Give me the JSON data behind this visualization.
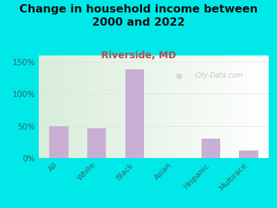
{
  "title": "Change in household income between\n2000 and 2022",
  "subtitle": "Riverside, MD",
  "categories": [
    "All",
    "White",
    "Black",
    "Asian",
    "Hispanic",
    "Multirace"
  ],
  "values": [
    50,
    46,
    138,
    0,
    30,
    12
  ],
  "bar_color": "#c9afd4",
  "background_color": "#00e8e8",
  "plot_bg_left": "#d8edda",
  "plot_bg_right": "#ffffff",
  "title_color": "#111111",
  "subtitle_color": "#b05050",
  "xticklabel_color": "#336666",
  "ytick_color": "#336666",
  "ylim": [
    0,
    160
  ],
  "yticks": [
    0,
    50,
    100,
    150
  ],
  "ytick_labels": [
    "0%",
    "50%",
    "100%",
    "150%"
  ],
  "watermark": "City-Data.com",
  "title_fontsize": 11.5,
  "subtitle_fontsize": 10
}
